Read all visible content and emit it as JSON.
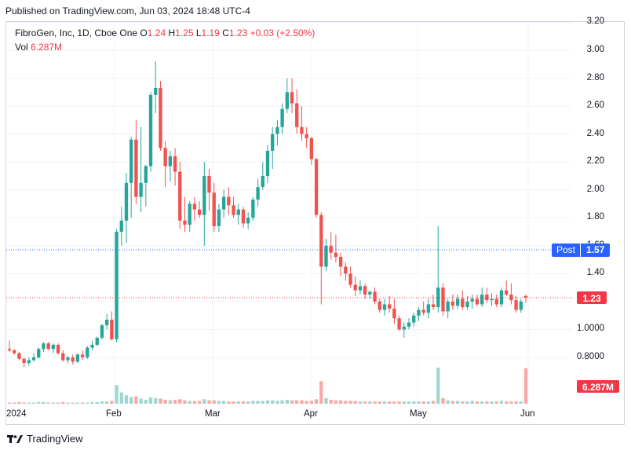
{
  "published_text": "Published on TradingView.com, Jun 03, 2024 18:48 UTC-4",
  "legend": {
    "symbol": "FibroGen, Inc, 1D, Cboe One",
    "o_label": "O",
    "o": "1.24",
    "h_label": "H",
    "h": "1.25",
    "l_label": "L",
    "l": "1.19",
    "c_label": "C",
    "c": "1.23",
    "change": "+0.03 (+2.50%)",
    "vol_label": "Vol",
    "vol": "6.287M"
  },
  "price_axis": [
    "3.20",
    "3.00",
    "2.80",
    "2.60",
    "2.40",
    "2.20",
    "2.00",
    "1.80",
    "1.60",
    "1.40",
    "1.20",
    "1.0000",
    "0.8000"
  ],
  "time_axis": [
    "2024",
    "Feb",
    "Mar",
    "Apr",
    "May",
    "Jun"
  ],
  "badges": {
    "post_label": "Post",
    "post_value": "1.57",
    "last_price": "1.23",
    "volume": "6.287M"
  },
  "footer": {
    "brand": "TradingView"
  },
  "colors": {
    "up": "#26a69a",
    "down": "#ef5350",
    "post": "#2962ff",
    "last": "#f23645"
  },
  "chart_data": {
    "type": "candlestick",
    "symbol": "FibroGen, Inc",
    "interval": "1D",
    "ylim": [
      0.62,
      3.25
    ],
    "candles": [
      [
        0.86,
        0.92,
        0.84,
        0.85
      ],
      [
        0.85,
        0.86,
        0.82,
        0.83
      ],
      [
        0.83,
        0.84,
        0.78,
        0.79
      ],
      [
        0.79,
        0.8,
        0.73,
        0.76
      ],
      [
        0.76,
        0.8,
        0.74,
        0.78
      ],
      [
        0.78,
        0.83,
        0.77,
        0.8
      ],
      [
        0.8,
        0.87,
        0.79,
        0.86
      ],
      [
        0.86,
        0.91,
        0.84,
        0.9
      ],
      [
        0.9,
        0.91,
        0.85,
        0.86
      ],
      [
        0.86,
        0.9,
        0.83,
        0.89
      ],
      [
        0.89,
        0.9,
        0.82,
        0.83
      ],
      [
        0.83,
        0.85,
        0.77,
        0.78
      ],
      [
        0.78,
        0.81,
        0.76,
        0.8
      ],
      [
        0.8,
        0.82,
        0.75,
        0.77
      ],
      [
        0.77,
        0.83,
        0.76,
        0.82
      ],
      [
        0.82,
        0.85,
        0.78,
        0.8
      ],
      [
        0.8,
        0.88,
        0.79,
        0.87
      ],
      [
        0.87,
        0.92,
        0.85,
        0.89
      ],
      [
        0.89,
        0.95,
        0.88,
        0.94
      ],
      [
        0.94,
        1.04,
        0.93,
        1.03
      ],
      [
        1.03,
        1.11,
        1.0,
        1.07
      ],
      [
        1.07,
        1.13,
        0.92,
        0.93
      ],
      [
        0.93,
        1.72,
        0.91,
        1.7
      ],
      [
        1.7,
        1.88,
        1.6,
        1.78
      ],
      [
        1.78,
        2.12,
        1.62,
        2.05
      ],
      [
        2.05,
        2.38,
        1.8,
        2.36
      ],
      [
        2.36,
        2.5,
        1.9,
        1.95
      ],
      [
        1.95,
        2.45,
        1.84,
        2.05
      ],
      [
        2.05,
        2.18,
        1.88,
        2.17
      ],
      [
        2.17,
        2.7,
        2.13,
        2.68
      ],
      [
        2.68,
        2.92,
        2.55,
        2.73
      ],
      [
        2.73,
        2.78,
        2.28,
        2.3
      ],
      [
        2.3,
        2.35,
        2.02,
        2.17
      ],
      [
        2.17,
        2.28,
        2.06,
        2.24
      ],
      [
        2.24,
        2.3,
        2.03,
        2.13
      ],
      [
        2.13,
        2.2,
        1.72,
        1.78
      ],
      [
        1.78,
        1.95,
        1.7,
        1.75
      ],
      [
        1.75,
        1.92,
        1.7,
        1.9
      ],
      [
        1.9,
        1.95,
        1.78,
        1.86
      ],
      [
        1.86,
        1.92,
        1.8,
        1.82
      ],
      [
        1.82,
        2.2,
        1.6,
        2.1
      ],
      [
        2.1,
        2.15,
        1.85,
        1.98
      ],
      [
        1.98,
        2.05,
        1.7,
        1.74
      ],
      [
        1.74,
        1.9,
        1.7,
        1.86
      ],
      [
        1.86,
        2.0,
        1.8,
        1.95
      ],
      [
        1.95,
        2.02,
        1.82,
        1.89
      ],
      [
        1.89,
        1.95,
        1.8,
        1.82
      ],
      [
        1.82,
        1.9,
        1.75,
        1.86
      ],
      [
        1.86,
        1.88,
        1.73,
        1.76
      ],
      [
        1.76,
        1.84,
        1.72,
        1.8
      ],
      [
        1.8,
        1.95,
        1.78,
        1.93
      ],
      [
        1.93,
        2.08,
        1.88,
        2.02
      ],
      [
        2.02,
        2.2,
        2.0,
        2.1
      ],
      [
        2.1,
        2.32,
        2.05,
        2.28
      ],
      [
        2.28,
        2.45,
        2.15,
        2.4
      ],
      [
        2.4,
        2.5,
        2.32,
        2.45
      ],
      [
        2.45,
        2.62,
        2.4,
        2.58
      ],
      [
        2.58,
        2.8,
        2.55,
        2.7
      ],
      [
        2.7,
        2.8,
        2.55,
        2.62
      ],
      [
        2.62,
        2.72,
        2.4,
        2.45
      ],
      [
        2.45,
        2.6,
        2.35,
        2.4
      ],
      [
        2.4,
        2.45,
        2.3,
        2.37
      ],
      [
        2.37,
        2.38,
        2.18,
        2.22
      ],
      [
        2.22,
        2.23,
        1.8,
        1.82
      ],
      [
        1.82,
        1.84,
        1.18,
        1.45
      ],
      [
        1.45,
        1.65,
        1.42,
        1.6
      ],
      [
        1.6,
        1.7,
        1.5,
        1.55
      ],
      [
        1.55,
        1.68,
        1.48,
        1.52
      ],
      [
        1.52,
        1.55,
        1.38,
        1.45
      ],
      [
        1.45,
        1.48,
        1.35,
        1.4
      ],
      [
        1.4,
        1.45,
        1.3,
        1.32
      ],
      [
        1.32,
        1.38,
        1.24,
        1.28
      ],
      [
        1.28,
        1.35,
        1.25,
        1.31
      ],
      [
        1.31,
        1.33,
        1.22,
        1.25
      ],
      [
        1.25,
        1.28,
        1.22,
        1.27
      ],
      [
        1.27,
        1.3,
        1.18,
        1.2
      ],
      [
        1.2,
        1.22,
        1.12,
        1.14
      ],
      [
        1.14,
        1.22,
        1.1,
        1.18
      ],
      [
        1.18,
        1.24,
        1.12,
        1.15
      ],
      [
        1.15,
        1.22,
        1.04,
        1.08
      ],
      [
        1.08,
        1.1,
        0.99,
        1.0
      ],
      [
        1.0,
        1.05,
        0.94,
        1.02
      ],
      [
        1.02,
        1.08,
        1.0,
        1.05
      ],
      [
        1.05,
        1.12,
        1.02,
        1.1
      ],
      [
        1.1,
        1.16,
        1.06,
        1.14
      ],
      [
        1.14,
        1.2,
        1.1,
        1.12
      ],
      [
        1.12,
        1.22,
        1.08,
        1.18
      ],
      [
        1.18,
        1.25,
        1.14,
        1.16
      ],
      [
        1.16,
        1.74,
        1.12,
        1.3
      ],
      [
        1.3,
        1.33,
        1.1,
        1.13
      ],
      [
        1.13,
        1.22,
        1.08,
        1.2
      ],
      [
        1.2,
        1.25,
        1.14,
        1.17
      ],
      [
        1.17,
        1.25,
        1.15,
        1.22
      ],
      [
        1.22,
        1.28,
        1.14,
        1.16
      ],
      [
        1.16,
        1.24,
        1.14,
        1.2
      ],
      [
        1.2,
        1.25,
        1.15,
        1.22
      ],
      [
        1.22,
        1.25,
        1.17,
        1.18
      ],
      [
        1.18,
        1.3,
        1.16,
        1.25
      ],
      [
        1.25,
        1.3,
        1.19,
        1.21
      ],
      [
        1.21,
        1.26,
        1.17,
        1.22
      ],
      [
        1.22,
        1.25,
        1.16,
        1.18
      ],
      [
        1.18,
        1.3,
        1.16,
        1.28
      ],
      [
        1.28,
        1.35,
        1.24,
        1.25
      ],
      [
        1.25,
        1.33,
        1.18,
        1.21
      ],
      [
        1.21,
        1.24,
        1.12,
        1.14
      ],
      [
        1.14,
        1.22,
        1.12,
        1.2
      ],
      [
        1.24,
        1.25,
        1.19,
        1.23
      ]
    ],
    "volume_million": [
      0.2,
      0.2,
      0.3,
      0.2,
      0.2,
      0.2,
      0.3,
      0.3,
      0.2,
      0.2,
      0.2,
      0.3,
      0.2,
      0.2,
      0.2,
      0.2,
      0.2,
      0.3,
      0.3,
      0.4,
      0.4,
      0.5,
      3.3,
      2.0,
      1.5,
      1.2,
      1.3,
      0.9,
      0.7,
      1.1,
      1.0,
      0.9,
      0.7,
      0.6,
      0.7,
      0.8,
      0.6,
      0.5,
      0.5,
      0.5,
      0.8,
      0.6,
      0.6,
      0.5,
      0.5,
      0.4,
      0.4,
      0.4,
      0.4,
      0.4,
      0.5,
      0.5,
      0.5,
      0.6,
      0.6,
      0.5,
      0.6,
      0.7,
      0.6,
      0.6,
      0.6,
      0.5,
      0.5,
      0.8,
      4.0,
      1.0,
      0.7,
      0.6,
      0.6,
      0.5,
      0.5,
      0.5,
      0.4,
      0.4,
      0.4,
      0.4,
      0.4,
      0.4,
      0.4,
      0.4,
      0.4,
      0.4,
      0.4,
      0.4,
      0.4,
      0.4,
      0.4,
      0.5,
      6.4,
      1.0,
      0.6,
      0.5,
      0.5,
      0.4,
      0.4,
      0.5,
      0.4,
      0.4,
      0.4,
      0.4,
      0.4,
      0.5,
      0.4,
      0.4,
      0.4,
      0.4,
      6.287
    ],
    "post_market_price": 1.57,
    "last_price": 1.23
  }
}
